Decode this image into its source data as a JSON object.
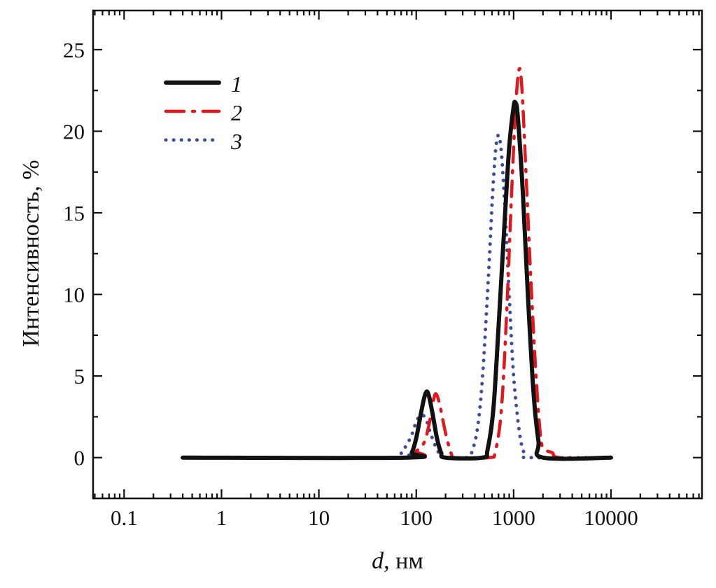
{
  "chart_data": {
    "type": "line",
    "title": "",
    "xlabel_var": "d",
    "xlabel_unit": ", нм",
    "ylabel": "Интенсивность, %",
    "xscale": "log",
    "xlim": [
      0.048,
      86000
    ],
    "ylim": [
      -2.5,
      27.4
    ],
    "x_ticks": [
      0.1,
      1,
      10,
      100,
      1000,
      10000
    ],
    "x_tick_labels": [
      "0.1",
      "1",
      "10",
      "100",
      "1000",
      "10000"
    ],
    "y_ticks": [
      0,
      5,
      10,
      15,
      20,
      25
    ],
    "y_tick_labels": [
      "0",
      "5",
      "10",
      "15",
      "20",
      "25"
    ],
    "grid": false,
    "legend_position": "top-left",
    "series": [
      {
        "name": "1",
        "color": "#111111",
        "style": "solid",
        "points": [
          [
            0.4,
            0
          ],
          [
            80,
            0
          ],
          [
            90,
            0.3
          ],
          [
            100,
            1.2
          ],
          [
            110,
            2.5
          ],
          [
            120,
            3.6
          ],
          [
            128,
            4.05
          ],
          [
            136,
            3.7
          ],
          [
            148,
            2.6
          ],
          [
            163,
            1.2
          ],
          [
            180,
            0.3
          ],
          [
            200,
            0
          ],
          [
            480,
            0
          ],
          [
            540,
            0.5
          ],
          [
            620,
            3
          ],
          [
            700,
            8
          ],
          [
            800,
            14
          ],
          [
            900,
            19
          ],
          [
            1000,
            21.5
          ],
          [
            1040,
            21.7
          ],
          [
            1100,
            21
          ],
          [
            1250,
            16
          ],
          [
            1400,
            10
          ],
          [
            1600,
            4
          ],
          [
            1800,
            1
          ],
          [
            2000,
            0
          ],
          [
            10000,
            0
          ]
        ]
      },
      {
        "name": "2",
        "color": "#e3161b",
        "style": "dashdot",
        "points": [
          [
            0.4,
            0
          ],
          [
            78,
            0
          ],
          [
            100,
            0.4
          ],
          [
            120,
            0.9
          ],
          [
            135,
            2
          ],
          [
            150,
            3.5
          ],
          [
            160,
            3.9
          ],
          [
            175,
            3.2
          ],
          [
            200,
            1.5
          ],
          [
            230,
            0.2
          ],
          [
            250,
            0
          ],
          [
            560,
            0
          ],
          [
            650,
            0.4
          ],
          [
            750,
            3
          ],
          [
            850,
            9
          ],
          [
            950,
            16
          ],
          [
            1050,
            21.5
          ],
          [
            1140,
            23.8
          ],
          [
            1220,
            22.5
          ],
          [
            1350,
            17
          ],
          [
            1500,
            11
          ],
          [
            1700,
            5
          ],
          [
            1900,
            1.2
          ],
          [
            2100,
            0.5
          ],
          [
            2500,
            0.3
          ],
          [
            3000,
            0
          ],
          [
            10000,
            0
          ]
        ]
      },
      {
        "name": "3",
        "color": "#3b4ba0",
        "style": "dotted",
        "points": [
          [
            0.4,
            0
          ],
          [
            60,
            0
          ],
          [
            70,
            0.3
          ],
          [
            80,
            0.8
          ],
          [
            90,
            1.4
          ],
          [
            100,
            2.2
          ],
          [
            112,
            2.6
          ],
          [
            125,
            2.4
          ],
          [
            140,
            1.5
          ],
          [
            160,
            0.6
          ],
          [
            180,
            0.1
          ],
          [
            200,
            0
          ],
          [
            330,
            0
          ],
          [
            380,
            0.5
          ],
          [
            430,
            2
          ],
          [
            480,
            5
          ],
          [
            550,
            11
          ],
          [
            620,
            17
          ],
          [
            680,
            19.6
          ],
          [
            740,
            19
          ],
          [
            820,
            15
          ],
          [
            900,
            10
          ],
          [
            1000,
            5
          ],
          [
            1150,
            1.5
          ],
          [
            1300,
            0.2
          ],
          [
            1500,
            0
          ],
          [
            10000,
            0
          ]
        ]
      }
    ]
  }
}
